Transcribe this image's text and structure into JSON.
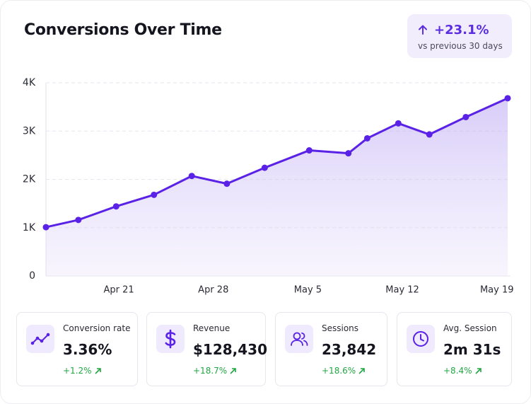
{
  "chart_data": {
    "type": "line",
    "title": "Conversions Over Time",
    "change": "+23.1%",
    "change_note": "vs previous 30 days",
    "x": [
      15.6,
      18.0,
      20.8,
      23.6,
      26.4,
      29.0,
      31.8,
      35.1,
      38.0,
      39.4,
      41.7,
      44.0,
      46.7,
      49.8
    ],
    "values": [
      1010,
      1160,
      1440,
      1680,
      2070,
      1910,
      2240,
      2600,
      2540,
      2850,
      3160,
      2930,
      3290,
      3680
    ],
    "color": "#5a22e6",
    "xlim": [
      15.6,
      49.8
    ],
    "xticks": [
      {
        "value": 21,
        "label": "Apr 21"
      },
      {
        "value": 28,
        "label": "Apr 28"
      },
      {
        "value": 35,
        "label": "May 5"
      },
      {
        "value": 42,
        "label": "May 12"
      },
      {
        "value": 49,
        "label": "May 19"
      }
    ],
    "ylim": [
      0,
      4000
    ],
    "yticks": [
      0,
      {
        "value": 1000,
        "label": "1K"
      },
      {
        "value": 2000,
        "label": "2K"
      },
      {
        "value": 3000,
        "label": "3K"
      },
      {
        "value": 4000,
        "label": "4K"
      }
    ],
    "grid": true
  },
  "stats": [
    {
      "label": "Conversion rate",
      "value": "3.36%",
      "change": "+1.2%"
    },
    {
      "label": "Revenue",
      "value": "$128,430",
      "change": "+18.7%"
    },
    {
      "label": "Sessions",
      "value": "23,842",
      "change": "+18.6%"
    },
    {
      "label": "Avg. Session",
      "value": "2m 31s",
      "change": "+8.4%"
    }
  ]
}
